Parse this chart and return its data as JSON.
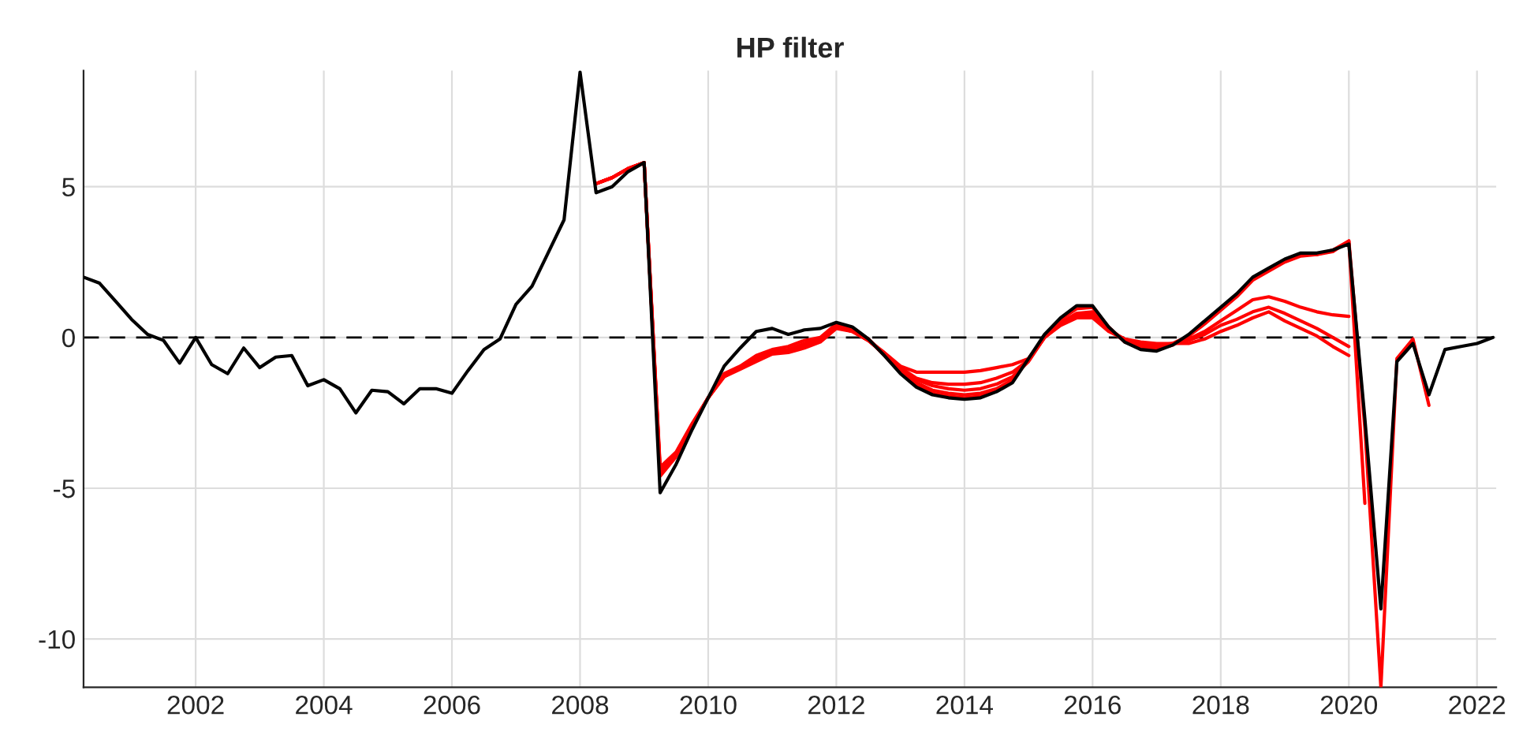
{
  "chart_data": {
    "type": "line",
    "title": "HP filter",
    "x": [
      2000.25,
      2000.5,
      2000.75,
      2001.0,
      2001.25,
      2001.5,
      2001.75,
      2002.0,
      2002.25,
      2002.5,
      2002.75,
      2003.0,
      2003.25,
      2003.5,
      2003.75,
      2004.0,
      2004.25,
      2004.5,
      2004.75,
      2005.0,
      2005.25,
      2005.5,
      2005.75,
      2006.0,
      2006.25,
      2006.5,
      2006.75,
      2007.0,
      2007.25,
      2007.5,
      2007.75,
      2008.0,
      2008.25,
      2008.5,
      2008.75,
      2009.0,
      2009.25,
      2009.5,
      2009.75,
      2010.0,
      2010.25,
      2010.5,
      2010.75,
      2011.0,
      2011.25,
      2011.5,
      2011.75,
      2012.0,
      2012.25,
      2012.5,
      2012.75,
      2013.0,
      2013.25,
      2013.5,
      2013.75,
      2014.0,
      2014.25,
      2014.5,
      2014.75,
      2015.0,
      2015.25,
      2015.5,
      2015.75,
      2016.0,
      2016.25,
      2016.5,
      2016.75,
      2017.0,
      2017.25,
      2017.5,
      2017.75,
      2018.0,
      2018.25,
      2018.5,
      2018.75,
      2019.0,
      2019.25,
      2019.5,
      2019.75,
      2020.0,
      2020.25,
      2020.5,
      2020.75,
      2021.0,
      2021.25,
      2021.5,
      2021.75,
      2022.0,
      2022.25
    ],
    "series": [
      {
        "color": "#ff0000",
        "values": [
          null,
          null,
          null,
          null,
          null,
          null,
          null,
          null,
          null,
          null,
          null,
          null,
          null,
          null,
          null,
          null,
          null,
          null,
          null,
          null,
          null,
          null,
          null,
          null,
          null,
          null,
          null,
          null,
          null,
          null,
          null,
          null,
          5.1,
          5.3,
          5.6,
          5.8,
          -4.3,
          -3.8,
          -2.85,
          -2.0,
          -1.3,
          -1.05,
          -0.8,
          -0.55,
          -0.5,
          -0.35,
          -0.15,
          0.3,
          0.2,
          -0.1,
          -0.5,
          -0.95,
          -1.15,
          -1.15,
          -1.15,
          -1.15,
          -1.1,
          -1.0,
          -0.9,
          -0.7,
          0.0,
          0.4,
          0.65,
          0.65,
          0.2,
          -0.05,
          -0.15,
          -0.2,
          -0.2,
          -0.2,
          -0.05,
          0.2,
          0.4,
          0.65,
          0.85,
          0.55,
          0.3,
          0.05,
          -0.3,
          -0.6,
          null,
          null,
          null,
          null,
          null,
          null,
          null,
          null,
          null
        ]
      },
      {
        "color": "#ff0000",
        "values": [
          null,
          null,
          null,
          null,
          null,
          null,
          null,
          null,
          null,
          null,
          null,
          null,
          null,
          null,
          null,
          null,
          null,
          null,
          null,
          null,
          null,
          null,
          null,
          null,
          null,
          null,
          null,
          null,
          null,
          null,
          null,
          null,
          5.1,
          5.3,
          5.6,
          5.8,
          -4.5,
          -3.9,
          -2.9,
          -2.0,
          -1.25,
          -1.0,
          -0.75,
          -0.5,
          -0.45,
          -0.3,
          -0.1,
          0.35,
          0.2,
          -0.1,
          -0.55,
          -1.0,
          -1.35,
          -1.5,
          -1.55,
          -1.55,
          -1.5,
          -1.35,
          -1.15,
          -0.75,
          0.0,
          0.45,
          0.7,
          0.75,
          0.25,
          -0.05,
          -0.2,
          -0.25,
          -0.2,
          -0.1,
          0.1,
          0.4,
          0.6,
          0.85,
          1.0,
          0.8,
          0.55,
          0.3,
          0.0,
          -0.3,
          null,
          null,
          null,
          null,
          null,
          null,
          null,
          null,
          null
        ]
      },
      {
        "color": "#ff0000",
        "values": [
          null,
          null,
          null,
          null,
          null,
          null,
          null,
          null,
          null,
          null,
          null,
          null,
          null,
          null,
          null,
          null,
          null,
          null,
          null,
          null,
          null,
          null,
          null,
          null,
          null,
          null,
          null,
          null,
          null,
          null,
          null,
          null,
          5.1,
          5.3,
          5.6,
          5.8,
          -4.4,
          -3.85,
          -2.9,
          -2.0,
          -1.3,
          -1.0,
          -0.75,
          -0.5,
          -0.45,
          -0.25,
          -0.1,
          0.35,
          0.2,
          -0.1,
          -0.55,
          -1.05,
          -1.4,
          -1.6,
          -1.7,
          -1.75,
          -1.7,
          -1.55,
          -1.3,
          -0.8,
          0.0,
          0.45,
          0.75,
          0.8,
          0.25,
          -0.1,
          -0.25,
          -0.3,
          -0.2,
          -0.05,
          0.2,
          0.55,
          0.9,
          1.25,
          1.35,
          1.2,
          1.0,
          0.85,
          0.75,
          0.7,
          null,
          null,
          null,
          null,
          null,
          null,
          null,
          null,
          null
        ]
      },
      {
        "color": "#ff0000",
        "values": [
          null,
          null,
          null,
          null,
          null,
          null,
          null,
          null,
          null,
          null,
          null,
          null,
          null,
          null,
          null,
          null,
          null,
          null,
          null,
          null,
          null,
          null,
          null,
          null,
          null,
          null,
          null,
          null,
          null,
          null,
          null,
          null,
          5.1,
          5.3,
          5.6,
          5.8,
          -4.6,
          -3.95,
          -2.95,
          -2.0,
          -1.25,
          -1.0,
          -0.7,
          -0.45,
          -0.4,
          -0.2,
          -0.05,
          0.4,
          0.25,
          -0.05,
          -0.55,
          -1.1,
          -1.5,
          -1.75,
          -1.85,
          -1.9,
          -1.85,
          -1.7,
          -1.4,
          -0.75,
          0.0,
          0.5,
          0.8,
          0.85,
          0.3,
          -0.1,
          -0.3,
          -0.35,
          -0.2,
          0.05,
          0.45,
          0.9,
          1.35,
          1.9,
          2.2,
          2.5,
          2.7,
          2.75,
          2.85,
          3.2,
          -5.5,
          null,
          null,
          null,
          null,
          null,
          null,
          null,
          null
        ]
      },
      {
        "color": "#ff0000",
        "values": [
          null,
          null,
          null,
          null,
          null,
          null,
          null,
          null,
          null,
          null,
          null,
          null,
          null,
          null,
          null,
          null,
          null,
          null,
          null,
          null,
          null,
          null,
          null,
          null,
          null,
          null,
          null,
          null,
          null,
          null,
          null,
          null,
          5.1,
          5.3,
          5.6,
          5.8,
          -4.5,
          -3.9,
          -2.9,
          -2.0,
          -1.2,
          -0.95,
          -0.6,
          -0.4,
          -0.3,
          -0.1,
          0.0,
          0.45,
          0.3,
          -0.05,
          -0.6,
          -1.15,
          -1.6,
          -1.85,
          -1.95,
          -2.0,
          -1.95,
          -1.75,
          -1.45,
          -0.7,
          0.05,
          0.6,
          0.95,
          1.0,
          0.35,
          -0.15,
          -0.35,
          -0.4,
          -0.25,
          0.05,
          0.5,
          0.95,
          1.4,
          1.95,
          2.25,
          2.55,
          2.75,
          2.75,
          2.9,
          3.2,
          -3.0,
          -11.6,
          -0.7,
          -0.05,
          -2.25,
          null,
          null,
          null,
          null
        ]
      },
      {
        "color": "#000000",
        "values": [
          2.0,
          1.8,
          1.2,
          0.6,
          0.1,
          -0.1,
          -0.85,
          0.0,
          -0.9,
          -1.2,
          -0.35,
          -1.0,
          -0.65,
          -0.6,
          -1.6,
          -1.4,
          -1.7,
          -2.5,
          -1.75,
          -1.8,
          -2.2,
          -1.7,
          -1.7,
          -1.85,
          -1.1,
          -0.4,
          -0.05,
          1.1,
          1.7,
          2.8,
          3.9,
          8.8,
          4.8,
          5.0,
          5.5,
          5.8,
          -5.15,
          -4.2,
          -3.05,
          -2.0,
          -0.95,
          -0.35,
          0.2,
          0.3,
          0.1,
          0.25,
          0.3,
          0.5,
          0.35,
          -0.05,
          -0.6,
          -1.2,
          -1.65,
          -1.9,
          -2.0,
          -2.05,
          -2.0,
          -1.8,
          -1.5,
          -0.7,
          0.1,
          0.65,
          1.05,
          1.05,
          0.35,
          -0.15,
          -0.4,
          -0.45,
          -0.25,
          0.1,
          0.55,
          1.0,
          1.45,
          2.0,
          2.3,
          2.6,
          2.8,
          2.8,
          2.9,
          3.1,
          -2.7,
          -9.0,
          -0.8,
          -0.2,
          -1.9,
          -0.4,
          -0.3,
          -0.2,
          0.0
        ]
      }
    ],
    "xlim": [
      2000.25,
      2022.3
    ],
    "ylim": [
      -11.6,
      8.85
    ],
    "xticks": [
      2002,
      2004,
      2006,
      2008,
      2010,
      2012,
      2014,
      2016,
      2018,
      2020,
      2022
    ],
    "yticks": [
      -10,
      -5,
      0,
      5
    ],
    "ref_lines": [
      {
        "axis": "y",
        "value": 0,
        "color": "#000000",
        "line_style": "dashed"
      }
    ],
    "grid": true,
    "marker": "none",
    "line_style": "solid"
  }
}
